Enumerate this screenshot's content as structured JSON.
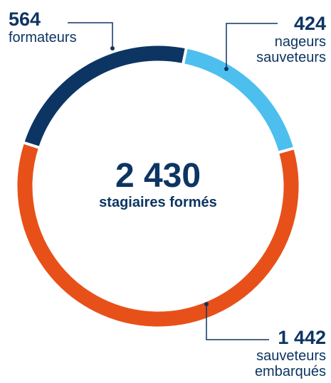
{
  "chart_data": {
    "type": "donut",
    "total": 2430,
    "total_label": "2 430",
    "center_text": "stagiaires formés",
    "series": [
      {
        "name": "formateurs",
        "color": "#0d3563",
        "values": [
          564
        ],
        "value_labels": [
          "564"
        ]
      },
      {
        "name": "nageurs sauveteurs",
        "color": "#4dbfee",
        "values": [
          424
        ],
        "value_labels": [
          "424"
        ]
      },
      {
        "name": "sauveteurs embarqués",
        "color": "#e8501a",
        "values": [
          1442
        ],
        "value_labels": [
          "1 442"
        ]
      }
    ]
  }
}
